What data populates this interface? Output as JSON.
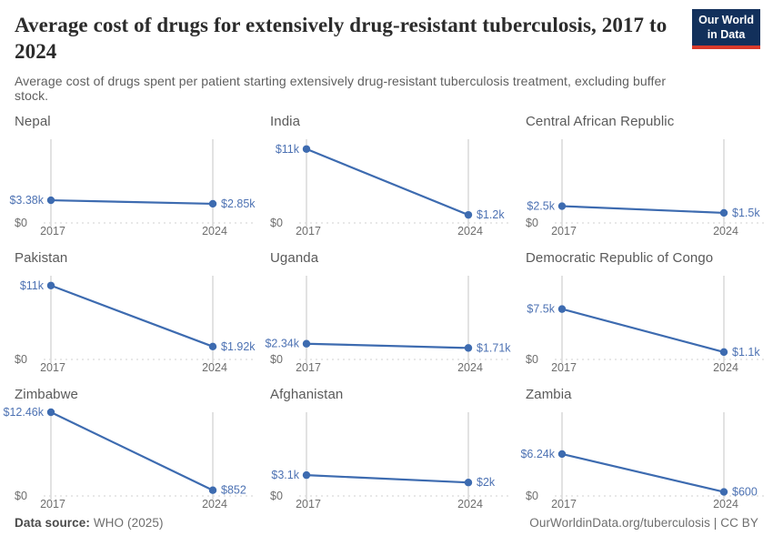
{
  "header": {
    "title": "Average cost of drugs for extensively drug-resistant tuberculosis, 2017 to 2024",
    "subtitle": "Average cost of drugs spent per patient starting extensively drug-resistant tuberculosis treatment, excluding buffer stock.",
    "logo": {
      "line1": "Our World",
      "line2": "in Data"
    }
  },
  "chart_data": {
    "type": "line",
    "x": [
      2017,
      2024
    ],
    "x_tick_labels": [
      "2017",
      "2024"
    ],
    "y_zero_label": "$0",
    "shared_ylim": [
      0,
      12460
    ],
    "grid": true,
    "line_color": "#3d6bb0",
    "point_color": "#3d6bb0",
    "value_label_color": "#4d72b3",
    "axis_label_color": "#6e6e6e",
    "facets": [
      {
        "title": "Nepal",
        "values": [
          3380,
          2850
        ],
        "value_labels": [
          "$3.38k",
          "$2.85k"
        ]
      },
      {
        "title": "India",
        "values": [
          11000,
          1200
        ],
        "value_labels": [
          "$11k",
          "$1.2k"
        ]
      },
      {
        "title": "Central African Republic",
        "values": [
          2500,
          1500
        ],
        "value_labels": [
          "$2.5k",
          "$1.5k"
        ]
      },
      {
        "title": "Pakistan",
        "values": [
          11000,
          1920
        ],
        "value_labels": [
          "$11k",
          "$1.92k"
        ]
      },
      {
        "title": "Uganda",
        "values": [
          2340,
          1710
        ],
        "value_labels": [
          "$2.34k",
          "$1.71k"
        ]
      },
      {
        "title": "Democratic Republic of Congo",
        "values": [
          7500,
          1100
        ],
        "value_labels": [
          "$7.5k",
          "$1.1k"
        ]
      },
      {
        "title": "Zimbabwe",
        "values": [
          12460,
          852
        ],
        "value_labels": [
          "$12.46k",
          "$852"
        ]
      },
      {
        "title": "Afghanistan",
        "values": [
          3100,
          2000
        ],
        "value_labels": [
          "$3.1k",
          "$2k"
        ]
      },
      {
        "title": "Zambia",
        "values": [
          6240,
          600
        ],
        "value_labels": [
          "$6.24k",
          "$600"
        ]
      }
    ]
  },
  "footer": {
    "source_label": "Data source:",
    "source_value": "WHO (2025)",
    "link": "OurWorldinData.org/tuberculosis",
    "separator": " | ",
    "license": "CC BY"
  }
}
